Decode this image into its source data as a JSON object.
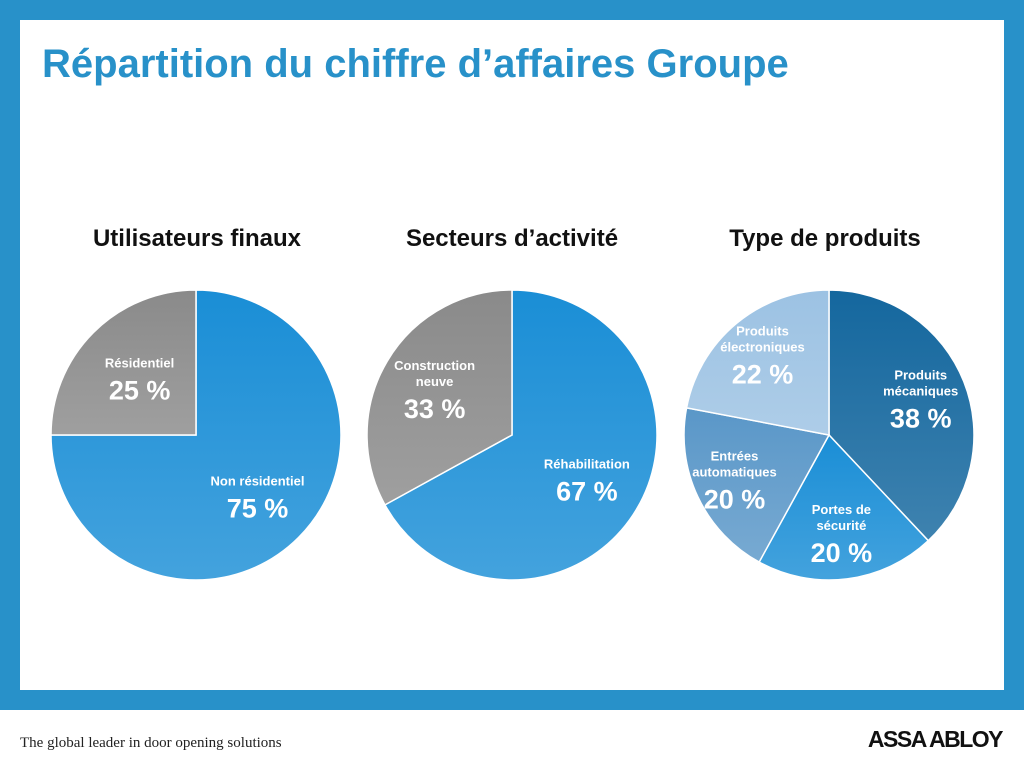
{
  "slide": {
    "title": "Répartition du chiffre d’affaires Groupe",
    "colors": {
      "frame": "#2891c9",
      "title": "#2891c9"
    }
  },
  "footer": {
    "tagline": "The global leader in door opening solutions",
    "logo": "ASSA ABLOY"
  },
  "chart_data": [
    {
      "type": "pie",
      "title": "Utilisateurs finaux",
      "slices": [
        {
          "label": "Non résidentiel",
          "value": 75,
          "display": "75 %",
          "color": "#1a8ed6"
        },
        {
          "label": "Résidentiel",
          "value": 25,
          "display": "25 %",
          "color": "#8a8a8a"
        }
      ]
    },
    {
      "type": "pie",
      "title": "Secteurs d’activité",
      "slices": [
        {
          "label": "Réhabilitation",
          "value": 67,
          "display": "67 %",
          "color": "#1a8ed6"
        },
        {
          "label": "Construction neuve",
          "value": 33,
          "display": "33 %",
          "color": "#8a8a8a"
        }
      ]
    },
    {
      "type": "pie",
      "title": "Type de produits",
      "slices": [
        {
          "label": "Produits mécaniques",
          "value": 38,
          "display": "38 %",
          "color": "#14679e"
        },
        {
          "label": "Portes de sécurité",
          "value": 20,
          "display": "20 %",
          "color": "#1a8ed6"
        },
        {
          "label": "Entrées automatiques",
          "value": 20,
          "display": "20 %",
          "color": "#5a97c8"
        },
        {
          "label": "Produits électroniques",
          "value": 22,
          "display": "22 %",
          "color": "#9cc2e3"
        }
      ]
    }
  ]
}
